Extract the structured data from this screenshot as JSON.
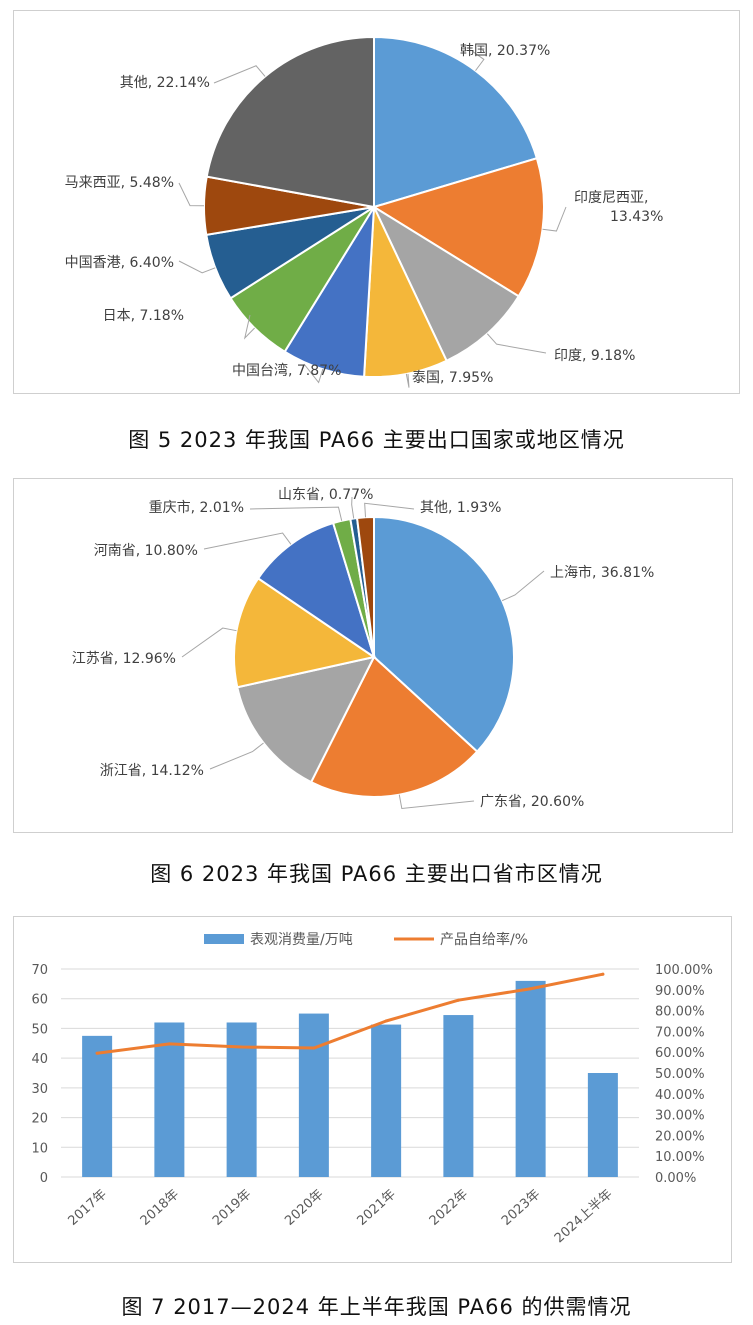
{
  "chart_data": [
    {
      "type": "pie",
      "title": "",
      "slices": [
        {
          "label": "韩国",
          "value": 20.37,
          "display": "韩国, 20.37%",
          "color": "#5b9bd5"
        },
        {
          "label": "印度尼西亚",
          "value": 13.43,
          "display": "印度尼西亚,",
          "display2": "13.43%",
          "color": "#ed7d31"
        },
        {
          "label": "印度",
          "value": 9.18,
          "display": "印度, 9.18%",
          "color": "#a5a5a5"
        },
        {
          "label": "泰国",
          "value": 7.95,
          "display": "泰国, 7.95%",
          "color": "#f4b73a"
        },
        {
          "label": "中国台湾",
          "value": 7.87,
          "display": "中国台湾, 7.87%",
          "color": "#4472c4"
        },
        {
          "label": "日本",
          "value": 7.18,
          "display": "日本, 7.18%",
          "color": "#70ad47"
        },
        {
          "label": "中国香港",
          "value": 6.4,
          "display": "中国香港, 6.40%",
          "color": "#255e91"
        },
        {
          "label": "马来西亚",
          "value": 5.48,
          "display": "马来西亚, 5.48%",
          "color": "#9e480e"
        },
        {
          "label": "其他",
          "value": 22.14,
          "display": "其他, 22.14%",
          "color": "#636363"
        }
      ]
    },
    {
      "type": "pie",
      "title": "",
      "slices": [
        {
          "label": "上海市",
          "value": 36.81,
          "display": "上海市, 36.81%",
          "color": "#5b9bd5"
        },
        {
          "label": "广东省",
          "value": 20.6,
          "display": "广东省, 20.60%",
          "color": "#ed7d31"
        },
        {
          "label": "浙江省",
          "value": 14.12,
          "display": "浙江省, 14.12%",
          "color": "#a5a5a5"
        },
        {
          "label": "江苏省",
          "value": 12.96,
          "display": "江苏省, 12.96%",
          "color": "#f4b73a"
        },
        {
          "label": "河南省",
          "value": 10.8,
          "display": "河南省, 10.80%",
          "color": "#4472c4"
        },
        {
          "label": "重庆市",
          "value": 2.01,
          "display": "重庆市, 2.01%",
          "color": "#70ad47"
        },
        {
          "label": "山东省",
          "value": 0.77,
          "display": "山东省, 0.77%",
          "color": "#255e91"
        },
        {
          "label": "其他",
          "value": 1.93,
          "display": "其他, 1.93%",
          "color": "#9e480e"
        }
      ]
    },
    {
      "type": "bar",
      "title": "",
      "categories": [
        "2017年",
        "2018年",
        "2019年",
        "2020年",
        "2021年",
        "2022年",
        "2023年",
        "2024上半年"
      ],
      "series": [
        {
          "name": "表观消费量/万吨",
          "kind": "bar",
          "axis": "left",
          "color": "#5b9bd5",
          "values": [
            47.5,
            52,
            52,
            55,
            51.3,
            54.5,
            66,
            35
          ]
        },
        {
          "name": "产品自给率/%",
          "kind": "line",
          "axis": "right",
          "color": "#ed7d31",
          "values": [
            59.5,
            64,
            62.5,
            62,
            75,
            85,
            90.5,
            97.5
          ]
        }
      ],
      "ylim": [
        0,
        70
      ],
      "yticks": [
        "0",
        "10",
        "20",
        "30",
        "40",
        "50",
        "60",
        "70"
      ],
      "y2lim": [
        0,
        100
      ],
      "y2ticks": [
        "0.00%",
        "10.00%",
        "20.00%",
        "30.00%",
        "40.00%",
        "50.00%",
        "60.00%",
        "70.00%",
        "80.00%",
        "90.00%",
        "100.00%"
      ],
      "grid": true,
      "legend": "top"
    }
  ],
  "captions": {
    "fig5": "图 5  2023 年我国 PA66 主要出口国家或地区情况",
    "fig6": "图 6  2023 年我国 PA66 主要出口省市区情况",
    "fig7": "图 7  2017—2024 年上半年我国 PA66 的供需情况"
  }
}
